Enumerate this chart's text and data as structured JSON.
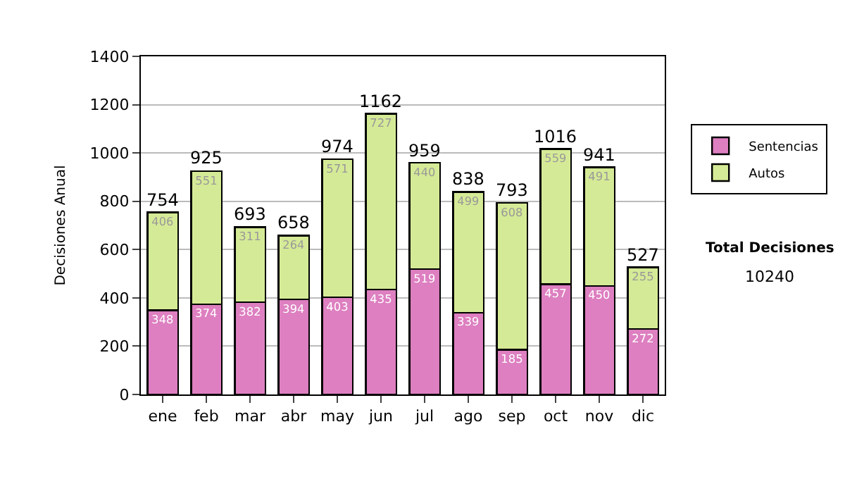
{
  "chart_data": {
    "type": "bar",
    "stacked": true,
    "ylabel": "Decisiones Anual",
    "categories": [
      "ene",
      "feb",
      "mar",
      "abr",
      "may",
      "jun",
      "jul",
      "ago",
      "sep",
      "oct",
      "nov",
      "dic"
    ],
    "series": [
      {
        "name": "Sentencias",
        "color": "#dd7fc0",
        "values": [
          348,
          374,
          382,
          394,
          403,
          435,
          519,
          339,
          185,
          457,
          450,
          272
        ]
      },
      {
        "name": "Autos",
        "color": "#d5ea96",
        "values": [
          406,
          551,
          311,
          264,
          571,
          727,
          440,
          499,
          608,
          559,
          491,
          255
        ]
      }
    ],
    "data_labels": true,
    "totals": [
      "754",
      "925",
      "693",
      "658",
      "974",
      "1162",
      "959",
      "838",
      "793",
      "1016",
      "941",
      "527"
    ],
    "ylim": [
      0,
      1400
    ],
    "yticks": [
      0,
      200,
      400,
      600,
      800,
      1000,
      1200,
      1400
    ],
    "grid": "y",
    "legend": "right",
    "annotations": [
      "Total Decisiones",
      "10240"
    ]
  }
}
